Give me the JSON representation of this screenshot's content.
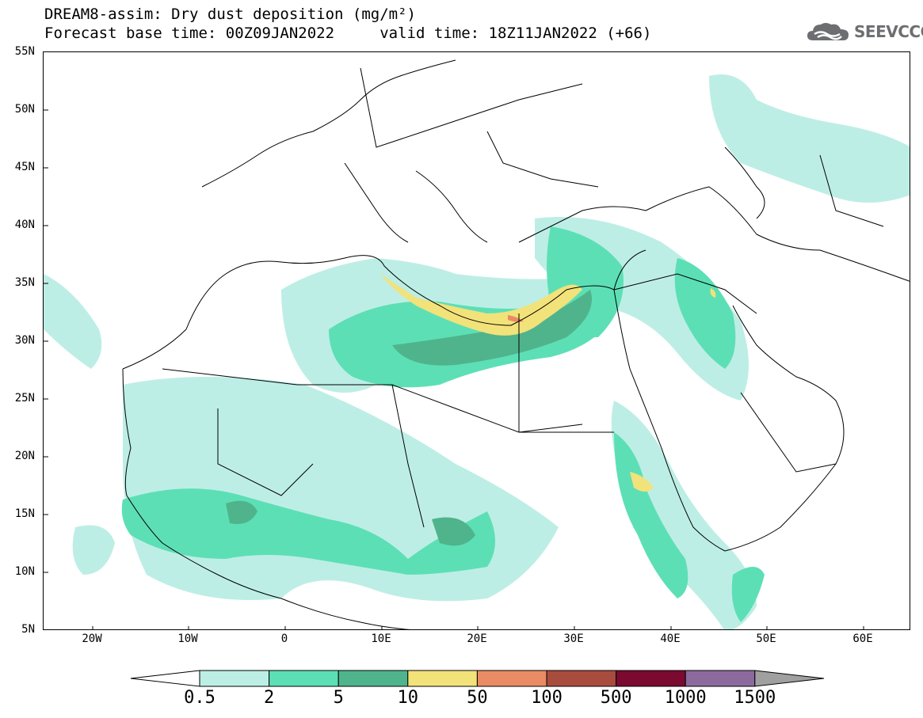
{
  "title": {
    "line1": "DREAM8-assim: Dry dust deposition (mg/m²)",
    "line2": "Forecast base time: 00Z09JAN2022     valid time: 18Z11JAN2022 (+66)"
  },
  "logo": {
    "text": "SEEVCCC",
    "icon": "cloud-icon"
  },
  "map": {
    "lat_ticks": [
      "55N",
      "50N",
      "45N",
      "40N",
      "35N",
      "30N",
      "25N",
      "20N",
      "15N",
      "10N",
      "5N"
    ],
    "lon_ticks": [
      "20W",
      "10W",
      "0",
      "10E",
      "20E",
      "30E",
      "40E",
      "50E",
      "60E"
    ],
    "lat_range": [
      5,
      55
    ],
    "lon_range": [
      -25,
      65
    ]
  },
  "legend": {
    "labels": [
      "0.5",
      "2",
      "5",
      "10",
      "50",
      "100",
      "500",
      "1000",
      "1500"
    ],
    "colors": [
      "#ffffff",
      "#bdeee5",
      "#5ddfb6",
      "#4fb48c",
      "#f2e27a",
      "#e98b64",
      "#a84c3e",
      "#7a0a2f",
      "#8c6a9e",
      "#a0a0a0"
    ]
  }
}
